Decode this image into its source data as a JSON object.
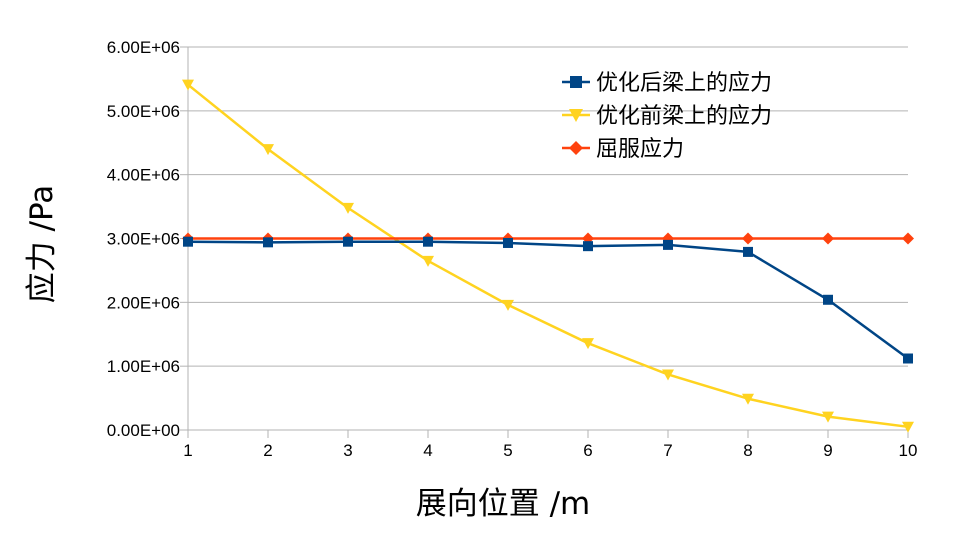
{
  "chart_data": {
    "type": "line",
    "xlabel": "展向位置 /m",
    "ylabel": "应力 /Pa",
    "x": [
      1,
      2,
      3,
      4,
      5,
      6,
      7,
      8,
      9,
      10
    ],
    "xlim": [
      1,
      10
    ],
    "ylim": [
      0,
      6000000
    ],
    "y_ticks": [
      "0.00E+00",
      "1.00E+06",
      "2.00E+06",
      "3.00E+06",
      "4.00E+06",
      "5.00E+06",
      "6.00E+06"
    ],
    "x_ticks": [
      "1",
      "2",
      "3",
      "4",
      "5",
      "6",
      "7",
      "8",
      "9",
      "10"
    ],
    "grid": true,
    "legend_position": "top-right",
    "series": [
      {
        "name": "优化后梁上的应力",
        "color": "#004586",
        "marker": "square",
        "values": [
          2950000,
          2940000,
          2950000,
          2950000,
          2930000,
          2880000,
          2900000,
          2790000,
          2040000,
          1120000
        ]
      },
      {
        "name": "优化前梁上的应力",
        "color": "#ffd320",
        "marker": "triangle-down",
        "values": [
          5410000,
          4400000,
          3480000,
          2650000,
          1960000,
          1360000,
          870000,
          490000,
          210000,
          50000
        ]
      },
      {
        "name": "屈服应力",
        "color": "#ff420e",
        "marker": "diamond",
        "values": [
          3000000,
          3000000,
          3000000,
          3000000,
          3000000,
          3000000,
          3000000,
          3000000,
          3000000,
          3000000
        ]
      }
    ]
  }
}
